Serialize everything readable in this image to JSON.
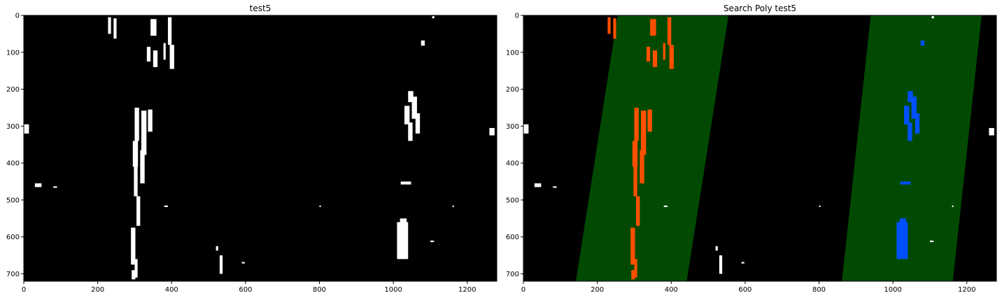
{
  "chart_data": [
    {
      "type": "image",
      "title": "test5",
      "xlim": [
        0,
        1280
      ],
      "ylim": [
        720,
        0
      ],
      "x_ticks": [
        0,
        200,
        400,
        600,
        800,
        1000,
        1200
      ],
      "y_ticks": [
        0,
        100,
        200,
        300,
        400,
        500,
        600,
        700
      ],
      "background_color": "#000000",
      "pixel_color": "#ffffff"
    },
    {
      "type": "image",
      "title": "Search Poly test5",
      "xlim": [
        0,
        1280
      ],
      "ylim": [
        720,
        0
      ],
      "x_ticks": [
        0,
        200,
        400,
        600,
        800,
        1000,
        1200
      ],
      "y_ticks": [
        0,
        100,
        200,
        300,
        400,
        500,
        600,
        700
      ],
      "background_color": "#000000",
      "search_region_color": "#024a02",
      "left_lane_color": "#ff4f00",
      "right_lane_color": "#0050ff",
      "other_pixel_color": "#ffffff",
      "search_bands": [
        {
          "name": "left",
          "bottom_x": [
            142,
            442
          ],
          "top_x": [
            255,
            555
          ]
        },
        {
          "name": "right",
          "bottom_x": [
            862,
            1162
          ],
          "top_x": [
            940,
            1240
          ]
        }
      ]
    }
  ]
}
